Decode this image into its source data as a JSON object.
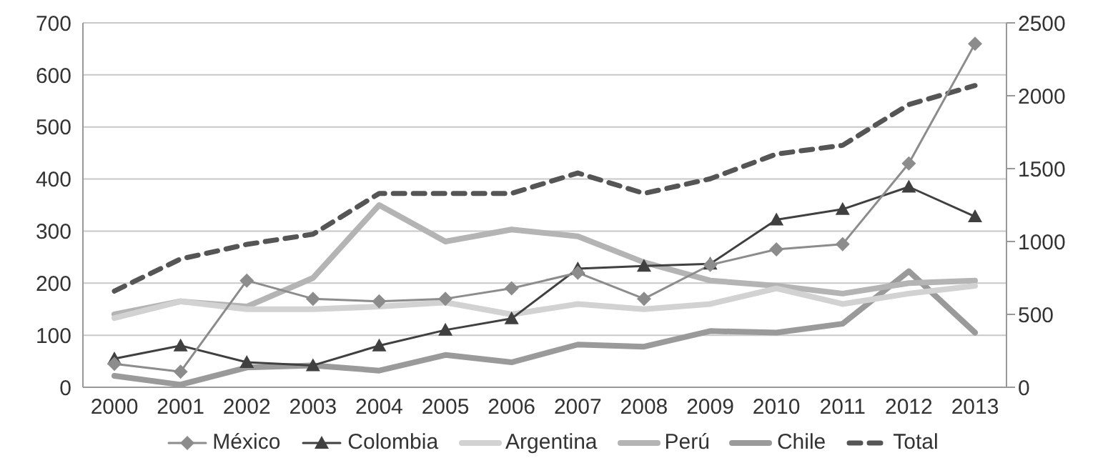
{
  "chart_data": {
    "type": "line",
    "categories": [
      "2000",
      "2001",
      "2002",
      "2003",
      "2004",
      "2005",
      "2006",
      "2007",
      "2008",
      "2009",
      "2010",
      "2011",
      "2012",
      "2013"
    ],
    "ylim": [
      0,
      700
    ],
    "yticks": [
      0,
      100,
      200,
      300,
      400,
      500,
      600,
      700
    ],
    "y2lim": [
      0,
      2500
    ],
    "y2ticks": [
      0,
      500,
      1000,
      1500,
      2000,
      2500
    ],
    "grid": "y",
    "legend": "bottom",
    "series": [
      {
        "name": "México",
        "color": "#8c8c8c",
        "marker": "diamond",
        "line_style": "solid",
        "values": [
          45,
          30,
          205,
          170,
          165,
          170,
          190,
          220,
          170,
          235,
          265,
          275,
          430,
          660
        ]
      },
      {
        "name": "Colombia",
        "color": "#404040",
        "marker": "triangle",
        "line_style": "solid",
        "values": [
          55,
          80,
          48,
          42,
          80,
          110,
          132,
          228,
          233,
          237,
          322,
          342,
          385,
          328
        ]
      },
      {
        "name": "Argentina",
        "color": "#d2d2d2",
        "marker": "none",
        "line_style": "solid",
        "values": [
          133,
          165,
          150,
          150,
          155,
          163,
          140,
          160,
          150,
          160,
          190,
          160,
          180,
          195
        ]
      },
      {
        "name": "Perú",
        "color": "#b4b4b4",
        "marker": "none",
        "line_style": "solid",
        "values": [
          140,
          165,
          155,
          210,
          350,
          280,
          303,
          290,
          240,
          205,
          195,
          180,
          200,
          205
        ]
      },
      {
        "name": "Chile",
        "color": "#9a9a9a",
        "marker": "none",
        "line_style": "solid",
        "values": [
          22,
          5,
          38,
          42,
          32,
          62,
          48,
          82,
          78,
          108,
          105,
          122,
          223,
          105
        ]
      },
      {
        "name": "Total",
        "color": "#555555",
        "marker": "none",
        "line_style": "dashed",
        "axis": "y2",
        "values": [
          660,
          880,
          980,
          1050,
          1330,
          1330,
          1330,
          1470,
          1330,
          1430,
          1600,
          1660,
          1940,
          2070
        ]
      }
    ]
  }
}
